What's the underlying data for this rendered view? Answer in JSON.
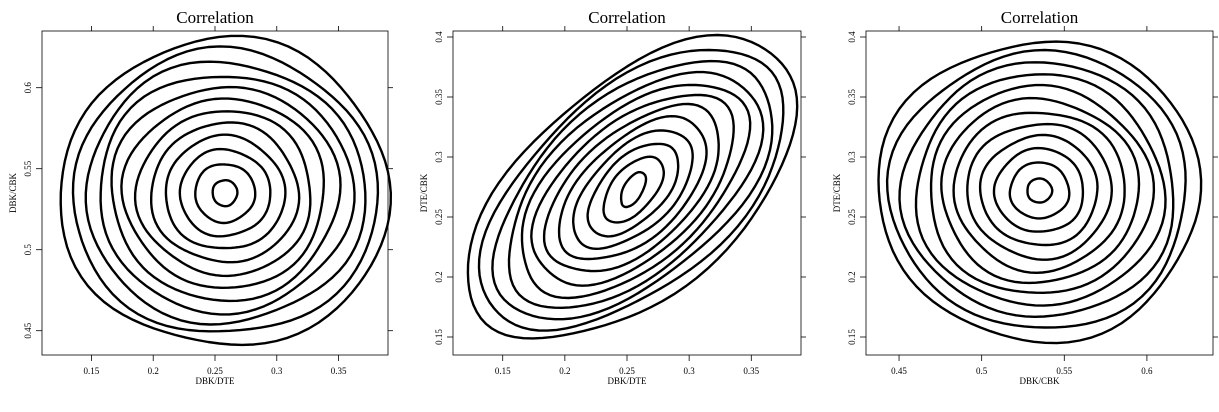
{
  "chart_data": [
    {
      "type": "contour",
      "title": "Correlation",
      "xlabel": "DBK/DTE",
      "ylabel": "DBK/CBK",
      "xlim": [
        0.11,
        0.39
      ],
      "ylim": [
        0.435,
        0.635
      ],
      "x_ticks": [
        0.15,
        0.2,
        0.25,
        0.3,
        0.35
      ],
      "x_tick_labels": [
        "0.15",
        "0.2",
        "0.25",
        "0.3",
        "0.35"
      ],
      "y_ticks": [
        0.45,
        0.5,
        0.55,
        0.6
      ],
      "y_tick_labels": [
        "0.45",
        "0.5",
        "0.55",
        "0.6"
      ],
      "center": [
        0.258,
        0.535
      ],
      "contour_levels": 12,
      "outer_contour": {
        "x_range": [
          0.117,
          0.384
        ],
        "y_range": [
          0.439,
          0.629
        ]
      },
      "inner_contour": {
        "x_range": [
          0.248,
          0.268
        ],
        "y_range": [
          0.527,
          0.543
        ]
      },
      "correlation": 0.0
    },
    {
      "type": "contour",
      "title": "Correlation",
      "xlabel": "DBK/DTE",
      "ylabel": "DTE/CBK",
      "xlim": [
        0.11,
        0.39
      ],
      "ylim": [
        0.135,
        0.405
      ],
      "x_ticks": [
        0.15,
        0.2,
        0.25,
        0.3,
        0.35
      ],
      "x_tick_labels": [
        "0.15",
        "0.2",
        "0.25",
        "0.3",
        "0.35"
      ],
      "y_ticks": [
        0.15,
        0.2,
        0.25,
        0.3,
        0.35,
        0.4
      ],
      "y_tick_labels": [
        "0.15",
        "0.2",
        "0.25",
        "0.3",
        "0.35",
        "0.4"
      ],
      "center": [
        0.255,
        0.273
      ],
      "contour_levels": 12,
      "outer_contour": {
        "x_range": [
          0.118,
          0.383
        ],
        "y_range": [
          0.143,
          0.395
        ]
      },
      "inner_contour": {
        "x_range": [
          0.245,
          0.265
        ],
        "y_range": [
          0.258,
          0.287
        ]
      },
      "correlation": 0.55
    },
    {
      "type": "contour",
      "title": "Correlation",
      "xlabel": "DBK/CBK",
      "ylabel": "DTE/CBK",
      "xlim": [
        0.43,
        0.64
      ],
      "ylim": [
        0.135,
        0.405
      ],
      "x_ticks": [
        0.45,
        0.5,
        0.55,
        0.6
      ],
      "x_tick_labels": [
        "0.45",
        "0.5",
        "0.55",
        "0.6"
      ],
      "y_ticks": [
        0.15,
        0.2,
        0.25,
        0.3,
        0.35,
        0.4
      ],
      "y_tick_labels": [
        "0.15",
        "0.2",
        "0.25",
        "0.3",
        "0.35",
        "0.4"
      ],
      "center": [
        0.535,
        0.272
      ],
      "contour_levels": 12,
      "outer_contour": {
        "x_range": [
          0.437,
          0.632
        ],
        "y_range": [
          0.145,
          0.395
        ]
      },
      "inner_contour": {
        "x_range": [
          0.528,
          0.543
        ],
        "y_range": [
          0.262,
          0.282
        ]
      },
      "correlation": 0.0
    }
  ]
}
